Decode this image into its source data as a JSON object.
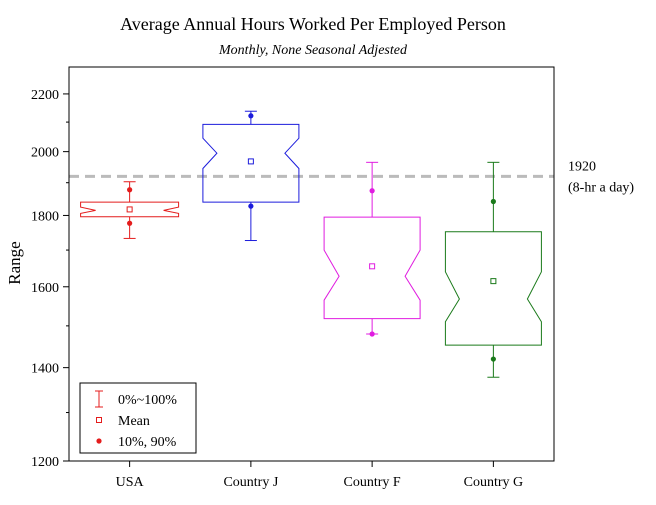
{
  "chart_data": {
    "type": "box",
    "title": "Average Annual Hours Worked Per Employed Person",
    "subtitle": "Monthly, None Seasonal Adjested",
    "xlabel": "",
    "ylabel": "Range",
    "y_scale": "log",
    "ylim": [
      1200,
      2300
    ],
    "y_ticks": [
      1200,
      1400,
      1600,
      1800,
      2000,
      2200
    ],
    "y_tick_labels": [
      "1200",
      "1400",
      "1600",
      "1800",
      "2000",
      "2200"
    ],
    "grid": false,
    "notched": true,
    "categories": [
      "USA",
      "Country J",
      "Country F",
      "Country G"
    ],
    "series": [
      {
        "category": "USA",
        "color": "#e41c1c",
        "min": 1733,
        "p10": 1777,
        "q1": 1796,
        "median": 1815,
        "q3": 1840,
        "p90": 1878,
        "max": 1903,
        "mean": 1818,
        "notch_low": 1806,
        "notch_high": 1825
      },
      {
        "category": "Country J",
        "color": "#1c1cdc",
        "min": 1727,
        "p10": 1828,
        "q1": 1840,
        "median": 1995,
        "q3": 2092,
        "p90": 2122,
        "max": 2138,
        "mean": 1968,
        "notch_low": 1945,
        "notch_high": 2045
      },
      {
        "category": "Country F",
        "color": "#e01ce0",
        "min": 1480,
        "p10": 1480,
        "q1": 1518,
        "median": 1628,
        "q3": 1795,
        "p90": 1875,
        "max": 1965,
        "mean": 1655,
        "notch_low": 1565,
        "notch_high": 1700
      },
      {
        "category": "Country G",
        "color": "#1a7a1a",
        "min": 1378,
        "p10": 1420,
        "q1": 1453,
        "median": 1568,
        "q3": 1752,
        "p90": 1842,
        "max": 1965,
        "mean": 1615,
        "notch_low": 1510,
        "notch_high": 1640
      }
    ],
    "reference_line": {
      "value": 1920,
      "label_lines": [
        "1920",
        "(8-hr a day)"
      ],
      "color": "#bbbbbb",
      "style": "dashed"
    },
    "legend": {
      "position": "bottom-left",
      "entries": [
        {
          "label": "0%~100%",
          "marker": "whisker"
        },
        {
          "label": "Mean",
          "marker": "open-square"
        },
        {
          "label": "10%, 90%",
          "marker": "dot"
        }
      ],
      "color": "#e41c1c"
    }
  }
}
